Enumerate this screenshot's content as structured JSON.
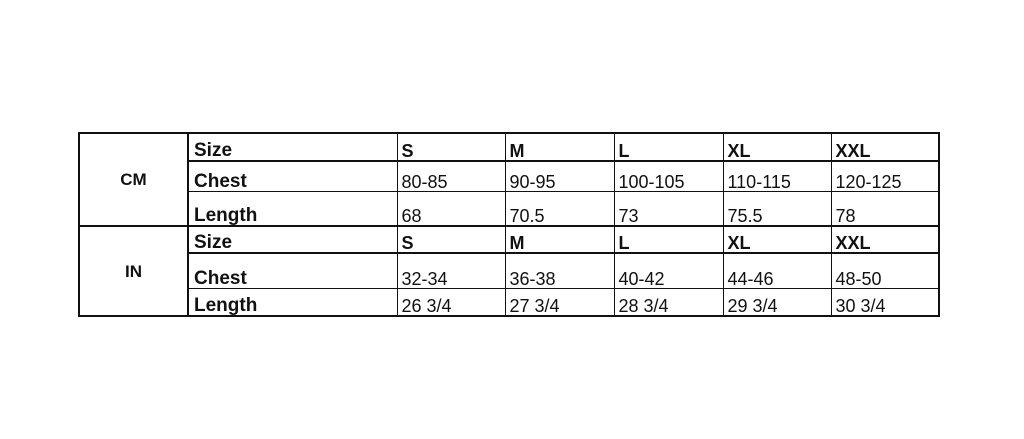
{
  "groups": [
    {
      "unit": "CM",
      "rows": [
        {
          "label": "Size",
          "values": [
            "S",
            "M",
            "L",
            "XL",
            "XXL"
          ]
        },
        {
          "label": "Chest",
          "values": [
            "80-85",
            "90-95",
            "100-105",
            "110-115",
            "120-125"
          ]
        },
        {
          "label": "Length",
          "values": [
            "68",
            "70.5",
            "73",
            "75.5",
            "78"
          ]
        }
      ]
    },
    {
      "unit": "IN",
      "rows": [
        {
          "label": "Size",
          "values": [
            "S",
            "M",
            "L",
            "XL",
            "XXL"
          ]
        },
        {
          "label": "Chest",
          "values": [
            "32-34",
            "36-38",
            "40-42",
            "44-46",
            "48-50"
          ]
        },
        {
          "label": "Length",
          "values": [
            "26 3/4",
            "27 3/4",
            "28 3/4",
            "29 3/4",
            "30 3/4"
          ]
        }
      ]
    }
  ]
}
